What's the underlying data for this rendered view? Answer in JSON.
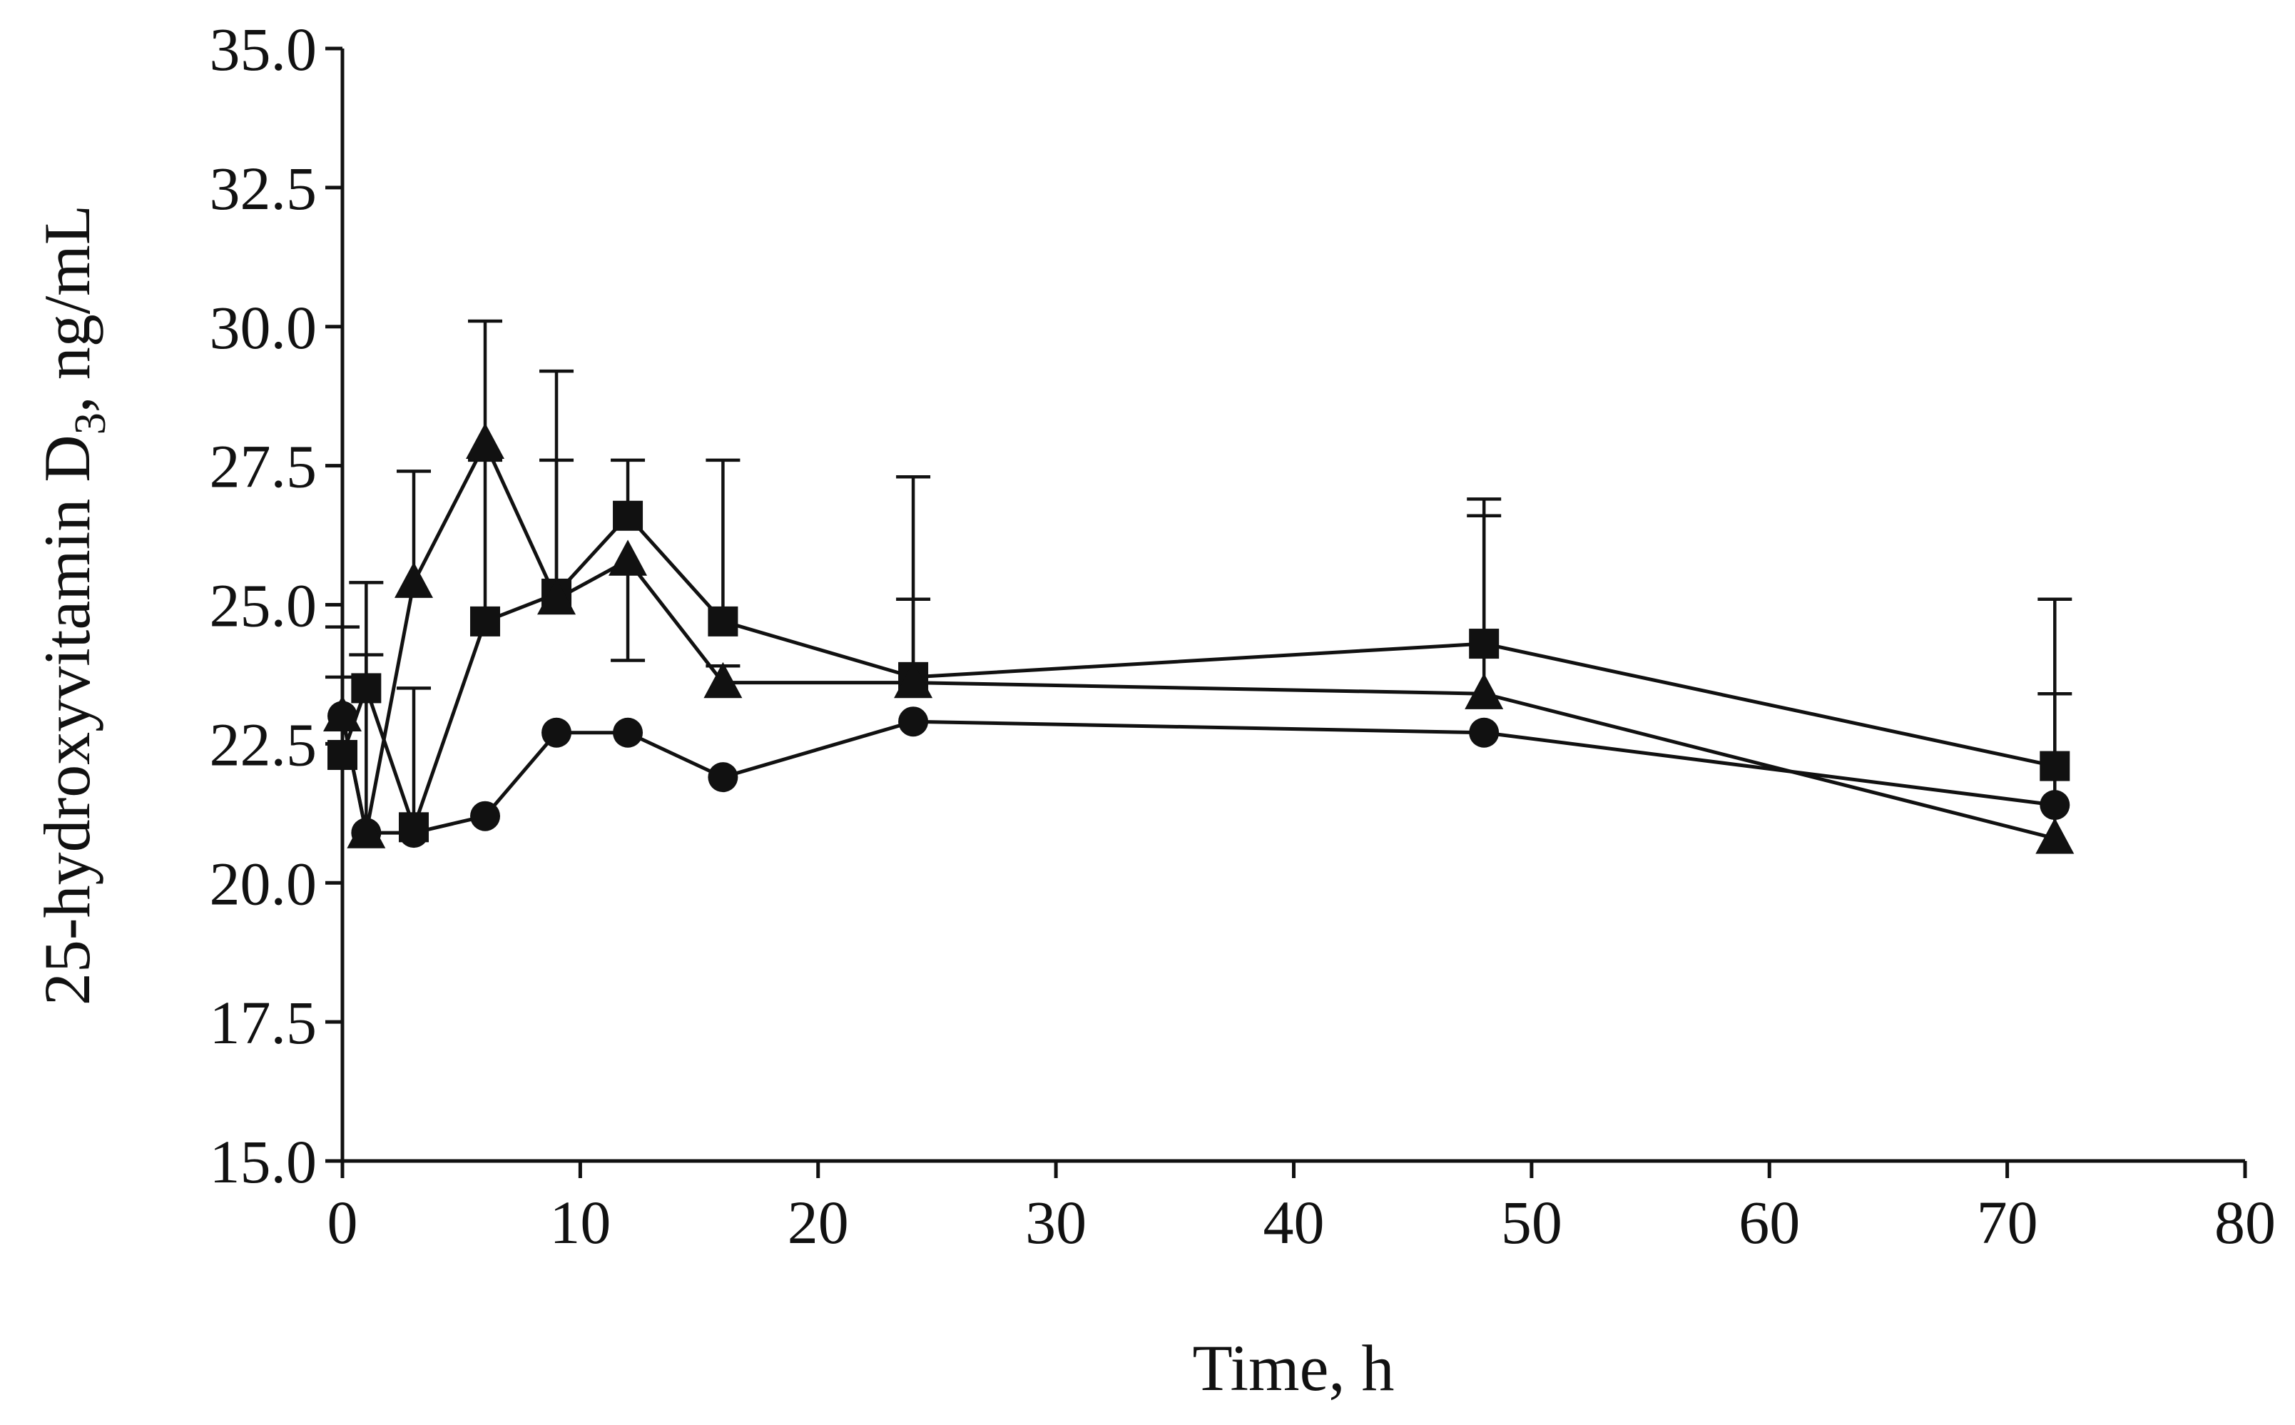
{
  "chart_data": {
    "type": "line",
    "title": "",
    "xlabel": "Time, h",
    "ylabel": {
      "prefix": "25-hydroxyvitamin D",
      "subscript": "3",
      "suffix": ", ng/mL"
    },
    "xlim": [
      0,
      80
    ],
    "ylim": [
      15.0,
      35.0
    ],
    "x_ticks": [
      0,
      10,
      20,
      30,
      40,
      50,
      60,
      70,
      80
    ],
    "x_tick_labels": [
      "0",
      "10",
      "20",
      "30",
      "40",
      "50",
      "60",
      "70",
      "80"
    ],
    "y_ticks": [
      15.0,
      17.5,
      20.0,
      22.5,
      25.0,
      27.5,
      30.0,
      32.5,
      35.0
    ],
    "y_tick_labels": [
      "15.0",
      "17.5",
      "20.0",
      "22.5",
      "25.0",
      "27.5",
      "30.0",
      "32.5",
      "35.0"
    ],
    "grid": false,
    "legend": "none",
    "error_bars": "upper (SD)",
    "series": [
      {
        "name": "circle series",
        "marker": "circle",
        "x": [
          0,
          1,
          3,
          6,
          9,
          12,
          16,
          24,
          48,
          72
        ],
        "y": [
          23.0,
          20.9,
          20.9,
          21.2,
          22.7,
          22.7,
          21.9,
          22.9,
          22.7,
          21.4
        ],
        "err_upper": [
          null,
          null,
          null,
          null,
          null,
          null,
          null,
          null,
          null,
          null
        ]
      },
      {
        "name": "square series",
        "marker": "square",
        "x": [
          0,
          1,
          3,
          6,
          9,
          12,
          16,
          24,
          48,
          72
        ],
        "y": [
          22.3,
          23.5,
          21.0,
          24.7,
          25.2,
          26.6,
          24.7,
          23.7,
          24.3,
          22.1
        ],
        "err_upper": [
          24.6,
          25.4,
          23.5,
          27.6,
          27.6,
          27.6,
          27.6,
          25.1,
          26.9,
          23.4
        ]
      },
      {
        "name": "triangle series",
        "marker": "triangle",
        "x": [
          0,
          1,
          3,
          6,
          9,
          12,
          16,
          24,
          48,
          72
        ],
        "y": [
          23.0,
          20.9,
          25.4,
          27.9,
          25.1,
          25.8,
          23.6,
          23.6,
          23.4,
          20.8
        ],
        "err_upper": [
          23.7,
          24.1,
          27.4,
          30.1,
          29.2,
          24.0,
          23.9,
          27.3,
          26.6,
          25.1
        ]
      }
    ]
  }
}
